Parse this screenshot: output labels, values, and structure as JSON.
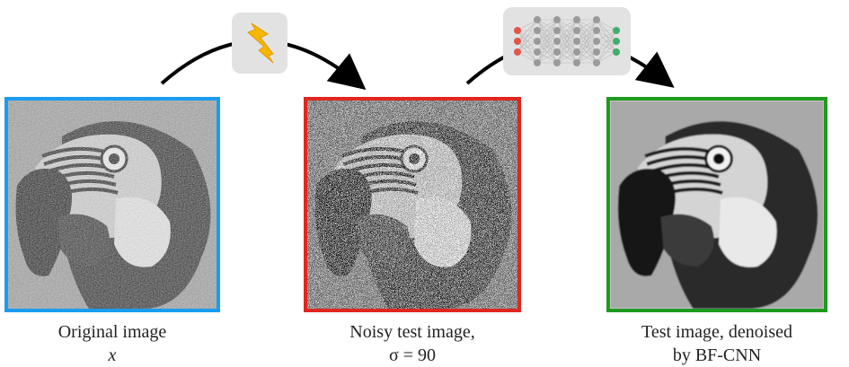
{
  "panels": [
    {
      "id": "original",
      "caption_line1": "Original image",
      "caption_line2": "x",
      "border_color": "#1a9cf0",
      "kind": "clean"
    },
    {
      "id": "noisy",
      "caption_line1": "Noisy test image,",
      "caption_line2": "σ = 90",
      "border_color": "#e0271f",
      "kind": "noisy"
    },
    {
      "id": "denoised",
      "caption_line1": "Test image, denoised",
      "caption_line2": "by BF-CNN",
      "border_color": "#1e9b1e",
      "kind": "smooth"
    }
  ],
  "icons": {
    "noise_icon": "lightning-bolt-icon",
    "network_icon": "neural-network-icon",
    "lightning_color": "#f5b800",
    "input_node_color": "#e0564b",
    "hidden_node_color": "#9a9a9a",
    "output_node_color": "#3fae6a"
  }
}
